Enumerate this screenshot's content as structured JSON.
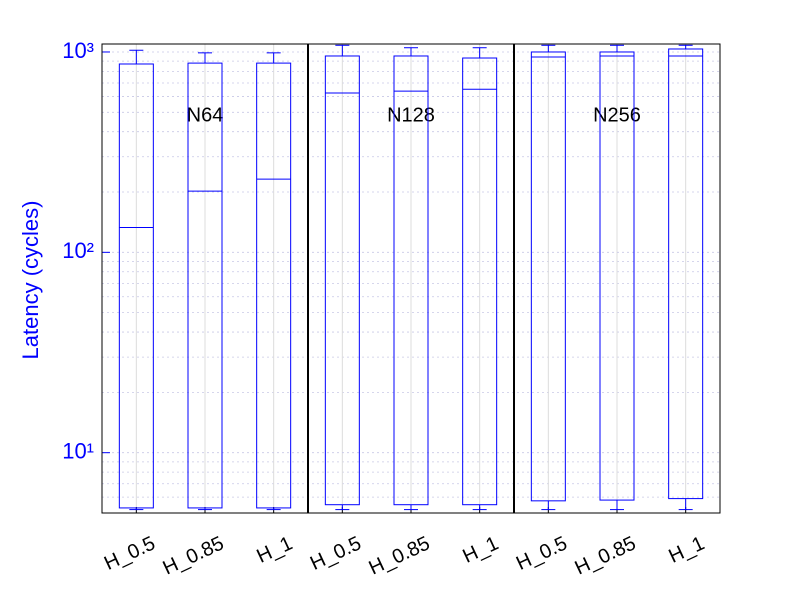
{
  "chart_data": {
    "type": "box",
    "y_label": "Latency (cycles)",
    "categories": [
      "H_0.5",
      "H_0.85",
      "H_1",
      "H_0.5",
      "H_0.85",
      "H_1",
      "H_0.5",
      "H_0.85",
      "H_1"
    ],
    "groups": [
      "N64",
      "N128",
      "N256"
    ],
    "color": "#0000ff",
    "log_scale": true,
    "grid": true,
    "ylim": [
      5,
      1096
    ],
    "yticks": [
      {
        "value": 10,
        "label": "10¹"
      },
      {
        "value": 100,
        "label": "10²"
      },
      {
        "value": 1000,
        "label": "10³"
      }
    ],
    "yminor_ticks": [
      6,
      7,
      8,
      9,
      20,
      30,
      40,
      50,
      60,
      70,
      80,
      90,
      200,
      300,
      400,
      500,
      600,
      700,
      800,
      900
    ],
    "boxes": [
      {
        "low": 5.2,
        "q1": 5.3,
        "median": 133,
        "q3": 871,
        "high": 1020
      },
      {
        "low": 5.2,
        "q1": 5.3,
        "median": 202,
        "q3": 880,
        "high": 990
      },
      {
        "low": 5.2,
        "q1": 5.3,
        "median": 232,
        "q3": 880,
        "high": 990
      },
      {
        "low": 5.2,
        "q1": 5.5,
        "median": 624,
        "q3": 955,
        "high": 1080
      },
      {
        "low": 5.2,
        "q1": 5.5,
        "median": 638,
        "q3": 955,
        "high": 1050
      },
      {
        "low": 5.2,
        "q1": 5.5,
        "median": 652,
        "q3": 933,
        "high": 1050
      },
      {
        "low": 5.2,
        "q1": 5.75,
        "median": 944,
        "q3": 1000,
        "high": 1080
      },
      {
        "low": 5.2,
        "q1": 5.8,
        "median": 955,
        "q3": 1000,
        "high": 1080
      },
      {
        "low": 5.2,
        "q1": 5.9,
        "median": 955,
        "q3": 1035,
        "high": 1080
      }
    ]
  }
}
